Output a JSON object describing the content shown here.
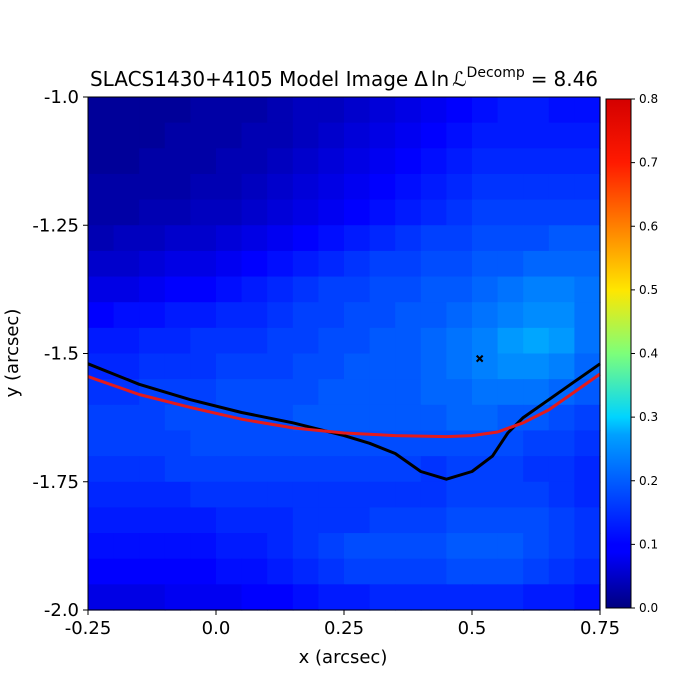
{
  "chart_data": {
    "type": "heatmap",
    "title": "SLACS1430+4105 Model Image",
    "title_math": {
      "delta": "Δ",
      "ln": "ln",
      "L": "ℒ",
      "superscript": "Decomp",
      "equals": "=",
      "value": "8.46"
    },
    "xlabel": "x (arcsec)",
    "ylabel": "y (arcsec)",
    "xlim": [
      -0.25,
      0.75
    ],
    "ylim": [
      -2.0,
      -1.0
    ],
    "xticks": [
      {
        "value": -0.25,
        "label": "-0.25"
      },
      {
        "value": 0.0,
        "label": "0.0"
      },
      {
        "value": 0.25,
        "label": "0.25"
      },
      {
        "value": 0.5,
        "label": "0.5"
      },
      {
        "value": 0.75,
        "label": "0.75"
      }
    ],
    "yticks": [
      {
        "value": -1.0,
        "label": "-1.0"
      },
      {
        "value": -1.25,
        "label": "-1.25"
      },
      {
        "value": -1.5,
        "label": "-1.5"
      },
      {
        "value": -1.75,
        "label": "-1.75"
      },
      {
        "value": -2.0,
        "label": "-2.0"
      }
    ],
    "colormap": "jet",
    "colorbar": {
      "range": [
        0.0,
        0.8
      ],
      "ticks": [
        {
          "value": 0.0,
          "label": "0.0"
        },
        {
          "value": 0.1,
          "label": "0.1"
        },
        {
          "value": 0.2,
          "label": "0.2"
        },
        {
          "value": 0.3,
          "label": "0.3"
        },
        {
          "value": 0.4,
          "label": "0.4"
        },
        {
          "value": 0.5,
          "label": "0.5"
        },
        {
          "value": 0.6,
          "label": "0.6"
        },
        {
          "value": 0.7,
          "label": "0.7"
        },
        {
          "value": 0.8,
          "label": "0.8"
        }
      ]
    },
    "grid": {
      "rows": 20,
      "cols": 20,
      "description": "rows ordered from top (y=-1.0) to bottom (y=-2.0)",
      "values": [
        [
          0.02,
          0.02,
          0.02,
          0.02,
          0.03,
          0.03,
          0.03,
          0.04,
          0.05,
          0.05,
          0.06,
          0.07,
          0.08,
          0.09,
          0.1,
          0.11,
          0.12,
          0.12,
          0.11,
          0.11
        ],
        [
          0.02,
          0.02,
          0.02,
          0.03,
          0.03,
          0.03,
          0.04,
          0.04,
          0.05,
          0.06,
          0.07,
          0.08,
          0.09,
          0.1,
          0.11,
          0.12,
          0.12,
          0.12,
          0.12,
          0.12
        ],
        [
          0.02,
          0.02,
          0.03,
          0.03,
          0.03,
          0.04,
          0.04,
          0.05,
          0.06,
          0.07,
          0.08,
          0.09,
          0.1,
          0.11,
          0.12,
          0.13,
          0.13,
          0.13,
          0.13,
          0.13
        ],
        [
          0.03,
          0.03,
          0.03,
          0.03,
          0.04,
          0.04,
          0.05,
          0.06,
          0.07,
          0.08,
          0.09,
          0.1,
          0.11,
          0.12,
          0.13,
          0.14,
          0.14,
          0.14,
          0.14,
          0.14
        ],
        [
          0.03,
          0.03,
          0.04,
          0.04,
          0.05,
          0.05,
          0.06,
          0.07,
          0.08,
          0.09,
          0.1,
          0.11,
          0.12,
          0.13,
          0.14,
          0.15,
          0.15,
          0.15,
          0.15,
          0.15
        ],
        [
          0.04,
          0.05,
          0.05,
          0.06,
          0.06,
          0.07,
          0.08,
          0.09,
          0.1,
          0.11,
          0.12,
          0.13,
          0.14,
          0.15,
          0.15,
          0.16,
          0.16,
          0.16,
          0.17,
          0.17
        ],
        [
          0.06,
          0.06,
          0.07,
          0.08,
          0.08,
          0.09,
          0.1,
          0.11,
          0.12,
          0.13,
          0.14,
          0.15,
          0.15,
          0.16,
          0.16,
          0.17,
          0.17,
          0.18,
          0.18,
          0.18
        ],
        [
          0.08,
          0.08,
          0.09,
          0.1,
          0.1,
          0.11,
          0.12,
          0.13,
          0.14,
          0.15,
          0.15,
          0.16,
          0.16,
          0.17,
          0.17,
          0.18,
          0.19,
          0.2,
          0.2,
          0.19
        ],
        [
          0.1,
          0.11,
          0.11,
          0.12,
          0.12,
          0.13,
          0.13,
          0.14,
          0.15,
          0.15,
          0.16,
          0.16,
          0.17,
          0.17,
          0.18,
          0.19,
          0.2,
          0.21,
          0.21,
          0.19
        ],
        [
          0.12,
          0.12,
          0.13,
          0.13,
          0.14,
          0.14,
          0.14,
          0.15,
          0.15,
          0.16,
          0.16,
          0.17,
          0.17,
          0.18,
          0.19,
          0.2,
          0.22,
          0.23,
          0.22,
          0.19
        ],
        [
          0.13,
          0.13,
          0.14,
          0.14,
          0.14,
          0.15,
          0.15,
          0.15,
          0.16,
          0.16,
          0.17,
          0.17,
          0.17,
          0.18,
          0.19,
          0.2,
          0.21,
          0.21,
          0.2,
          0.18
        ],
        [
          0.14,
          0.14,
          0.15,
          0.15,
          0.15,
          0.16,
          0.16,
          0.16,
          0.16,
          0.17,
          0.17,
          0.17,
          0.17,
          0.18,
          0.18,
          0.19,
          0.19,
          0.19,
          0.18,
          0.17
        ],
        [
          0.15,
          0.15,
          0.15,
          0.16,
          0.16,
          0.16,
          0.16,
          0.16,
          0.17,
          0.17,
          0.17,
          0.17,
          0.17,
          0.17,
          0.18,
          0.18,
          0.17,
          0.17,
          0.16,
          0.15
        ],
        [
          0.15,
          0.15,
          0.15,
          0.15,
          0.16,
          0.16,
          0.16,
          0.16,
          0.16,
          0.16,
          0.16,
          0.16,
          0.16,
          0.16,
          0.16,
          0.16,
          0.16,
          0.15,
          0.15,
          0.14
        ],
        [
          0.14,
          0.14,
          0.14,
          0.15,
          0.15,
          0.15,
          0.15,
          0.15,
          0.15,
          0.15,
          0.15,
          0.15,
          0.15,
          0.14,
          0.15,
          0.15,
          0.15,
          0.14,
          0.14,
          0.13
        ],
        [
          0.13,
          0.13,
          0.13,
          0.13,
          0.14,
          0.14,
          0.14,
          0.14,
          0.14,
          0.14,
          0.14,
          0.14,
          0.14,
          0.14,
          0.15,
          0.15,
          0.15,
          0.15,
          0.14,
          0.13
        ],
        [
          0.12,
          0.12,
          0.12,
          0.12,
          0.12,
          0.13,
          0.13,
          0.13,
          0.14,
          0.14,
          0.14,
          0.15,
          0.15,
          0.15,
          0.16,
          0.16,
          0.16,
          0.16,
          0.15,
          0.14
        ],
        [
          0.11,
          0.11,
          0.11,
          0.11,
          0.11,
          0.12,
          0.12,
          0.13,
          0.14,
          0.15,
          0.16,
          0.16,
          0.16,
          0.16,
          0.17,
          0.17,
          0.17,
          0.16,
          0.15,
          0.14
        ],
        [
          0.1,
          0.1,
          0.1,
          0.1,
          0.1,
          0.11,
          0.11,
          0.12,
          0.13,
          0.14,
          0.15,
          0.15,
          0.15,
          0.15,
          0.16,
          0.16,
          0.16,
          0.15,
          0.14,
          0.13
        ],
        [
          0.08,
          0.08,
          0.08,
          0.09,
          0.09,
          0.09,
          0.1,
          0.1,
          0.11,
          0.12,
          0.12,
          0.13,
          0.13,
          0.13,
          0.13,
          0.13,
          0.13,
          0.12,
          0.12,
          0.11
        ]
      ]
    },
    "curves": [
      {
        "color": "#000000",
        "points": [
          [
            -0.25,
            -1.52
          ],
          [
            -0.15,
            -1.56
          ],
          [
            -0.05,
            -1.59
          ],
          [
            0.05,
            -1.615
          ],
          [
            0.15,
            -1.635
          ],
          [
            0.25,
            -1.66
          ],
          [
            0.3,
            -1.675
          ],
          [
            0.35,
            -1.695
          ],
          [
            0.4,
            -1.73
          ],
          [
            0.45,
            -1.745
          ],
          [
            0.5,
            -1.73
          ],
          [
            0.54,
            -1.7
          ],
          [
            0.57,
            -1.655
          ],
          [
            0.6,
            -1.625
          ],
          [
            0.65,
            -1.59
          ],
          [
            0.7,
            -1.555
          ],
          [
            0.75,
            -1.52
          ]
        ]
      },
      {
        "color": "#e31a1c",
        "points": [
          [
            -0.25,
            -1.545
          ],
          [
            -0.15,
            -1.58
          ],
          [
            -0.05,
            -1.605
          ],
          [
            0.05,
            -1.628
          ],
          [
            0.15,
            -1.645
          ],
          [
            0.25,
            -1.655
          ],
          [
            0.35,
            -1.66
          ],
          [
            0.45,
            -1.662
          ],
          [
            0.5,
            -1.66
          ],
          [
            0.55,
            -1.653
          ],
          [
            0.6,
            -1.635
          ],
          [
            0.65,
            -1.61
          ],
          [
            0.7,
            -1.575
          ],
          [
            0.75,
            -1.54
          ]
        ]
      }
    ],
    "markers": [
      {
        "shape": "x",
        "color": "#000000",
        "x": 0.515,
        "y": -1.51
      }
    ]
  }
}
